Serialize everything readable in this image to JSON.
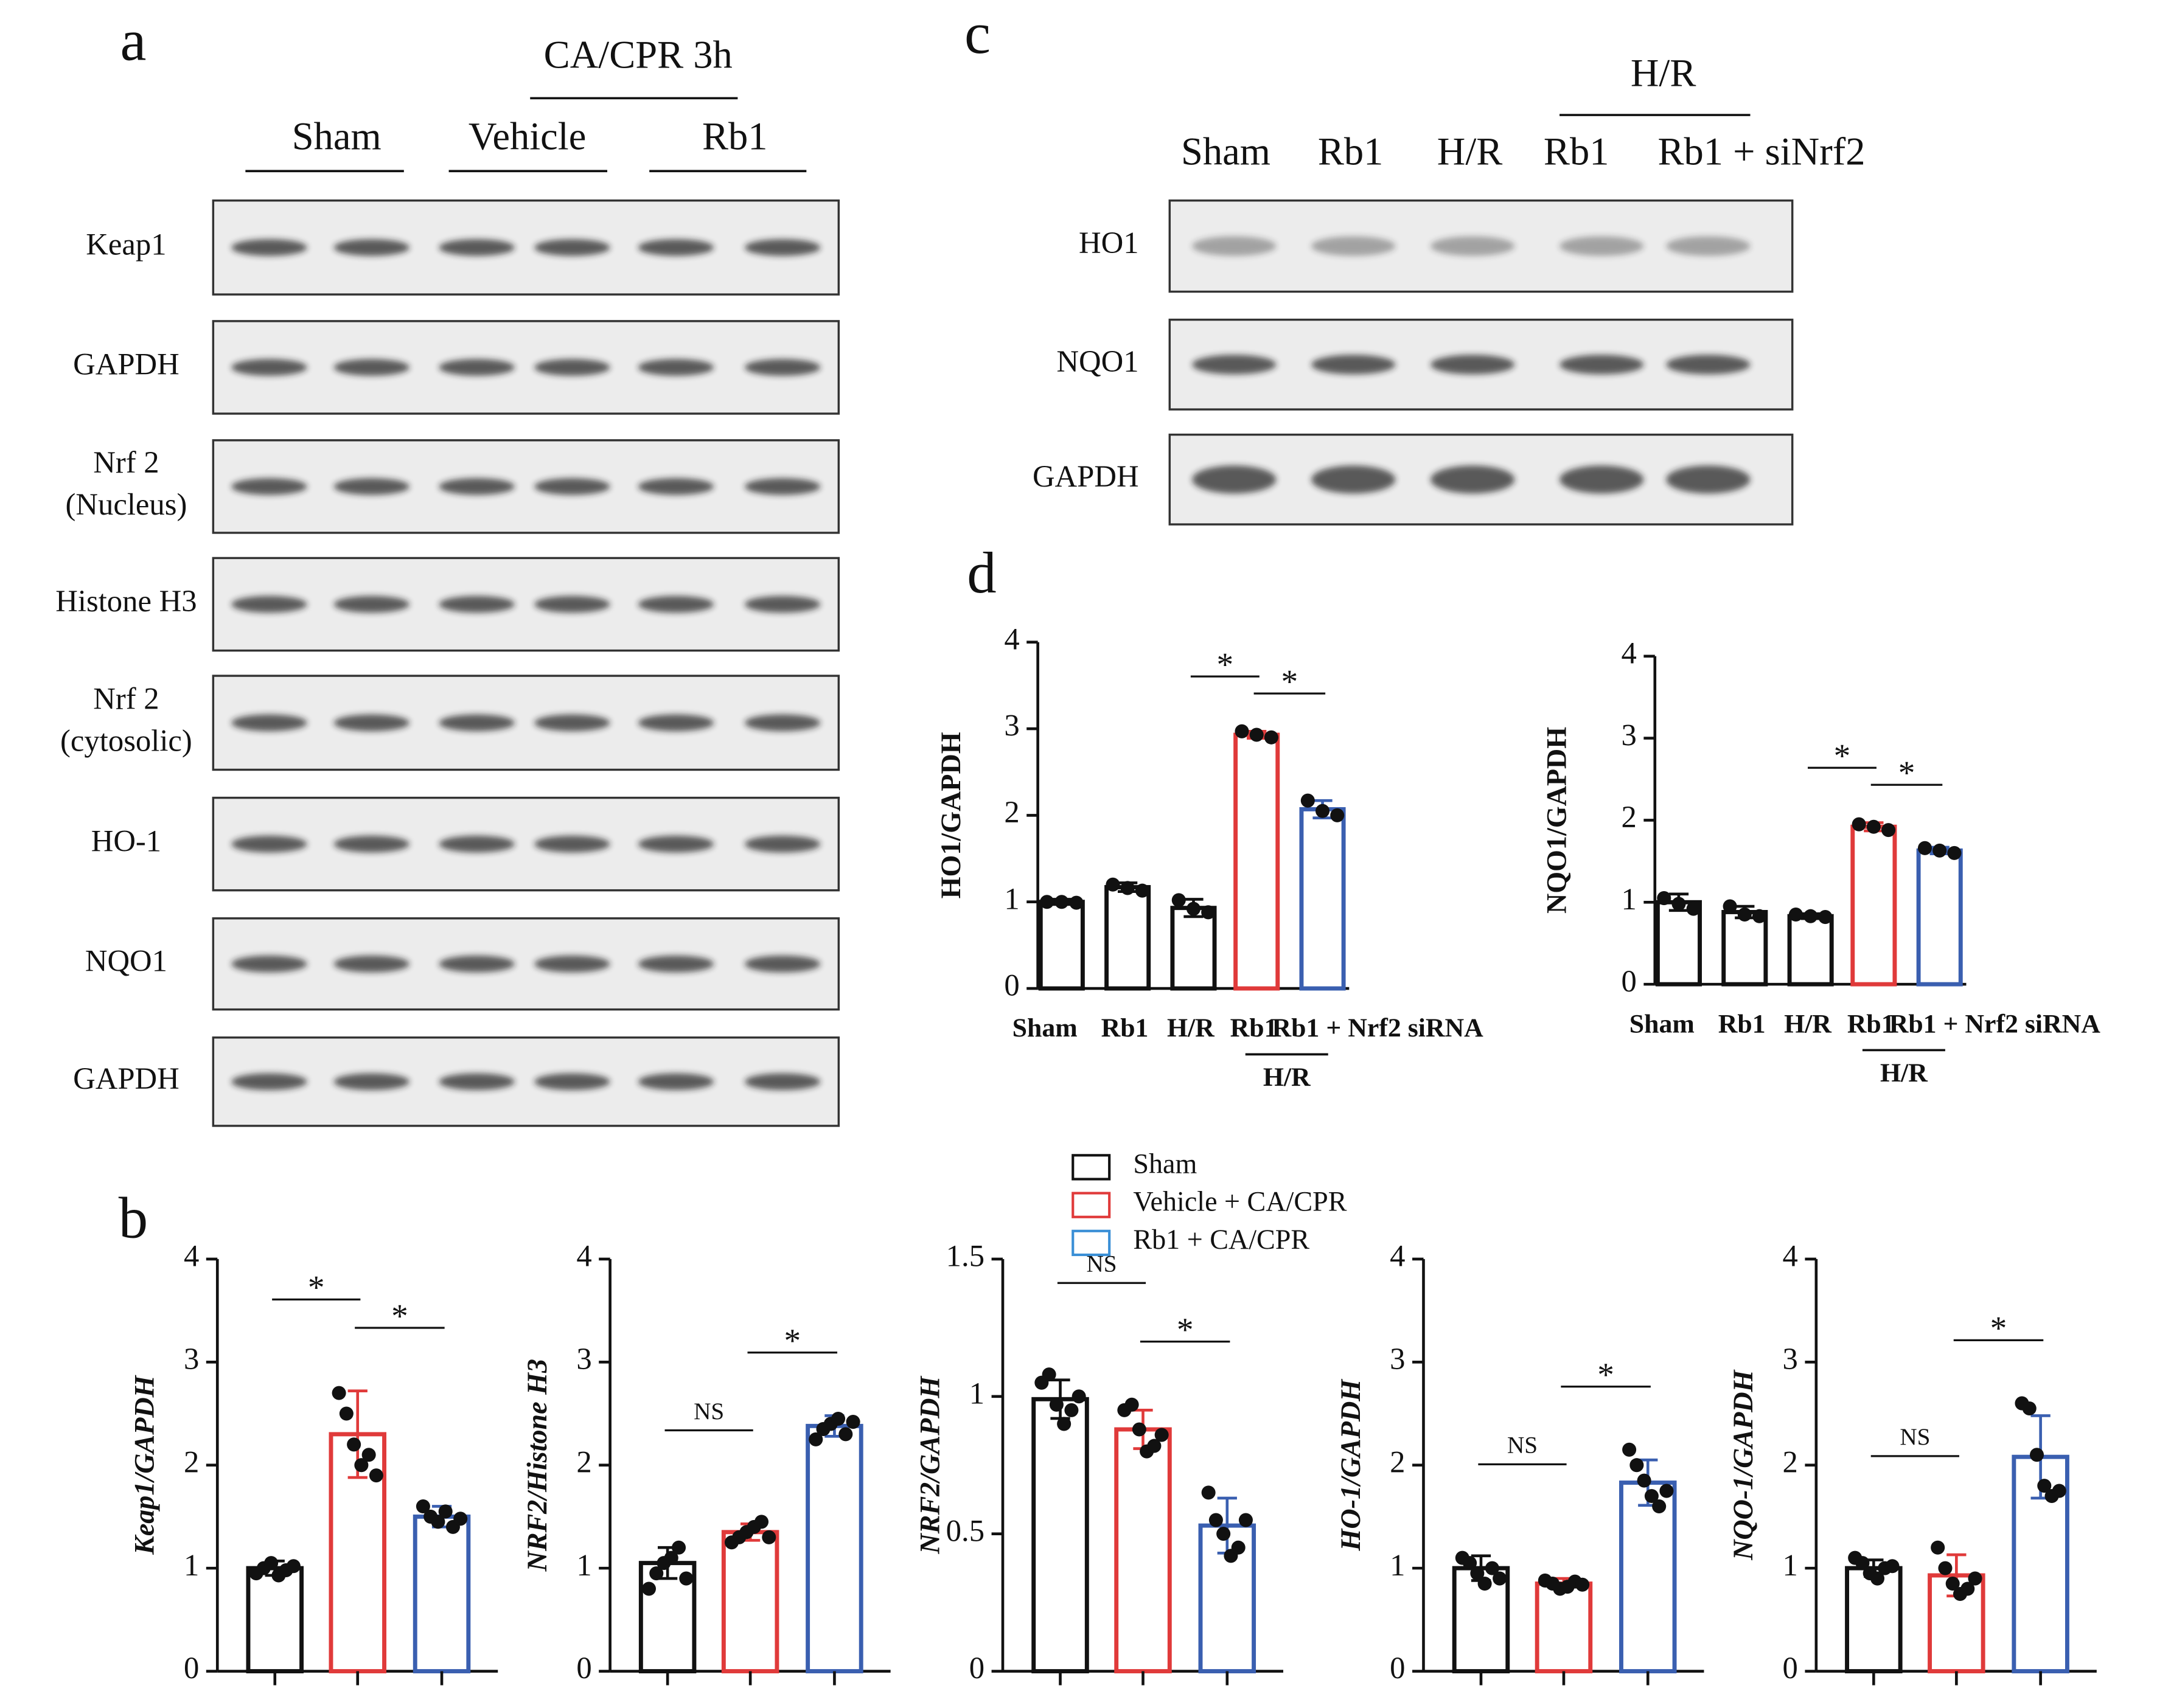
{
  "blot_a": {
    "panel": "a",
    "header": "CA/CPR 3h",
    "groups": [
      "Sham",
      "Vehicle",
      "Rb1"
    ],
    "rows": [
      [
        "Keap1"
      ],
      [
        "GAPDH"
      ],
      [
        "Nrf 2",
        "(Nucleus)"
      ],
      [
        "Histone H3"
      ],
      [
        "Nrf 2",
        "(cytosolic)"
      ],
      [
        "HO-1"
      ],
      [
        "NQO1"
      ],
      [
        "GAPDH"
      ]
    ]
  },
  "blot_c": {
    "panel": "c",
    "header": "H/R",
    "lanes": [
      "Sham",
      "Rb1",
      "H/R",
      "Rb1",
      "Rb1 + siNrf2"
    ],
    "rows": [
      "HO1",
      "NQO1",
      "GAPDH"
    ]
  },
  "panel_b": "b",
  "panel_d": "d",
  "legend": [
    {
      "name": "Sham",
      "color": "#111111"
    },
    {
      "name": "Vehicle + CA/CPR",
      "color": "#e03a3a"
    },
    {
      "name": "Rb1 + CA/CPR",
      "color": "#3a8fd6"
    }
  ],
  "chart_data": [
    {
      "type": "bar",
      "y_label": "Keap1/GAPDH",
      "categories": [
        null,
        null,
        null
      ],
      "values": [
        1.0,
        2.3,
        1.5
      ],
      "errors": [
        0.07,
        0.42,
        0.1
      ],
      "points": [
        [
          0.95,
          1.0,
          1.05,
          0.93,
          0.98,
          1.02
        ],
        [
          2.7,
          2.5,
          2.2,
          2.0,
          2.1,
          1.9
        ],
        [
          1.6,
          1.5,
          1.45,
          1.55,
          1.4,
          1.48
        ]
      ],
      "colors": [
        "#111111",
        "#e03a3a",
        "#3a5fb0"
      ],
      "ylim": [
        0,
        4
      ],
      "yticks": [
        0,
        1,
        2,
        3,
        4
      ],
      "annotations": [
        {
          "label": "*",
          "pair": [
            0,
            1
          ]
        },
        {
          "label": "*",
          "pair": [
            1,
            2
          ]
        }
      ]
    },
    {
      "type": "bar",
      "y_label": "NRF2/Histone H3",
      "categories": [
        null,
        null,
        null
      ],
      "values": [
        1.05,
        1.35,
        2.38
      ],
      "errors": [
        0.15,
        0.08,
        0.1
      ],
      "points": [
        [
          0.8,
          0.95,
          1.05,
          1.1,
          1.2,
          0.9
        ],
        [
          1.25,
          1.3,
          1.35,
          1.4,
          1.45,
          1.3
        ],
        [
          2.25,
          2.35,
          2.4,
          2.45,
          2.3,
          2.42
        ]
      ],
      "colors": [
        "#111111",
        "#e03a3a",
        "#3a5fb0"
      ],
      "ylim": [
        0,
        4
      ],
      "yticks": [
        0,
        1,
        2,
        3,
        4
      ],
      "annotations": [
        {
          "label": "NS",
          "pair": [
            0,
            1
          ]
        },
        {
          "label": "*",
          "pair": [
            1,
            2
          ]
        }
      ]
    },
    {
      "type": "bar",
      "y_label": "NRF2/GAPDH",
      "categories": [
        null,
        null,
        null
      ],
      "values": [
        0.99,
        0.88,
        0.53
      ],
      "errors": [
        0.07,
        0.07,
        0.1
      ],
      "points": [
        [
          1.05,
          1.08,
          0.97,
          0.9,
          0.95,
          1.0
        ],
        [
          0.95,
          0.97,
          0.88,
          0.8,
          0.82,
          0.86
        ],
        [
          0.65,
          0.55,
          0.5,
          0.42,
          0.45,
          0.55
        ]
      ],
      "colors": [
        "#111111",
        "#e03a3a",
        "#3a5fb0"
      ],
      "ylim": [
        0,
        1.5
      ],
      "yticks": [
        0,
        0.5,
        1,
        1.5
      ],
      "annotations": [
        {
          "label": "NS",
          "pair": [
            0,
            1
          ]
        },
        {
          "label": "*",
          "pair": [
            1,
            2
          ]
        }
      ]
    },
    {
      "type": "bar",
      "y_label": "HO-1/GAPDH",
      "categories": [
        null,
        null,
        null
      ],
      "values": [
        1.0,
        0.85,
        1.83
      ],
      "errors": [
        0.12,
        0.05,
        0.22
      ],
      "points": [
        [
          1.1,
          1.05,
          0.95,
          0.85,
          1.0,
          0.9
        ],
        [
          0.88,
          0.85,
          0.8,
          0.82,
          0.87,
          0.84
        ],
        [
          2.15,
          2.0,
          1.85,
          1.7,
          1.6,
          1.75
        ]
      ],
      "colors": [
        "#111111",
        "#e03a3a",
        "#3a5fb0"
      ],
      "ylim": [
        0,
        4
      ],
      "yticks": [
        0,
        1,
        2,
        3,
        4
      ],
      "annotations": [
        {
          "label": "NS",
          "pair": [
            0,
            1
          ]
        },
        {
          "label": "*",
          "pair": [
            1,
            2
          ]
        }
      ]
    },
    {
      "type": "bar",
      "y_label": "NQO-1/GAPDH",
      "categories": [
        null,
        null,
        null
      ],
      "values": [
        1.0,
        0.93,
        2.08
      ],
      "errors": [
        0.08,
        0.2,
        0.4
      ],
      "points": [
        [
          1.1,
          1.05,
          0.95,
          0.9,
          1.0,
          1.02
        ],
        [
          1.2,
          1.0,
          0.85,
          0.75,
          0.8,
          0.9
        ],
        [
          2.6,
          2.55,
          2.1,
          1.8,
          1.7,
          1.75
        ]
      ],
      "colors": [
        "#111111",
        "#e03a3a",
        "#3a5fb0"
      ],
      "ylim": [
        0,
        4
      ],
      "yticks": [
        0,
        1,
        2,
        3,
        4
      ],
      "annotations": [
        {
          "label": "NS",
          "pair": [
            0,
            1
          ]
        },
        {
          "label": "*",
          "pair": [
            1,
            2
          ]
        }
      ]
    },
    {
      "type": "bar",
      "y_label": "HO1/GAPDH",
      "categories": [
        "Sham",
        "Rb1",
        "H/R",
        "Rb1",
        "Rb1 + Nrf2 siRNA"
      ],
      "values": [
        1.0,
        1.17,
        0.93,
        2.93,
        2.07
      ],
      "errors": [
        0.03,
        0.05,
        0.1,
        0.04,
        0.1
      ],
      "points": [
        [
          1.0,
          1.0,
          0.99
        ],
        [
          1.2,
          1.16,
          1.13
        ],
        [
          1.02,
          0.92,
          0.88
        ],
        [
          2.97,
          2.93,
          2.9
        ],
        [
          2.17,
          2.05,
          2.0
        ]
      ],
      "colors": [
        "#111111",
        "#111111",
        "#111111",
        "#e03a3a",
        "#3a5fb0"
      ],
      "ylim": [
        0,
        4
      ],
      "yticks": [
        0,
        1,
        2,
        3,
        4
      ],
      "group": {
        "label": "H/R",
        "members": [
          3,
          4
        ]
      },
      "annotations": [
        {
          "label": "*",
          "pair": [
            2,
            3
          ]
        },
        {
          "label": "*",
          "pair": [
            3,
            4
          ]
        }
      ]
    },
    {
      "type": "bar",
      "y_label": "NQO1/GAPDH",
      "categories": [
        "Sham",
        "Rb1",
        "H/R",
        "Rb1",
        "Rb1 + Nrf2 siRNA"
      ],
      "values": [
        1.0,
        0.88,
        0.83,
        1.92,
        1.63
      ],
      "errors": [
        0.1,
        0.07,
        0.03,
        0.05,
        0.04
      ],
      "points": [
        [
          1.05,
          0.98,
          0.92
        ],
        [
          0.95,
          0.85,
          0.83
        ],
        [
          0.85,
          0.83,
          0.82
        ],
        [
          1.95,
          1.92,
          1.88
        ],
        [
          1.66,
          1.63,
          1.6
        ]
      ],
      "colors": [
        "#111111",
        "#111111",
        "#111111",
        "#e03a3a",
        "#3a5fb0"
      ],
      "ylim": [
        0,
        4
      ],
      "yticks": [
        0,
        1,
        2,
        3,
        4
      ],
      "group": {
        "label": "H/R",
        "members": [
          3,
          4
        ]
      },
      "annotations": [
        {
          "label": "*",
          "pair": [
            2,
            3
          ]
        },
        {
          "label": "*",
          "pair": [
            3,
            4
          ]
        }
      ]
    }
  ]
}
